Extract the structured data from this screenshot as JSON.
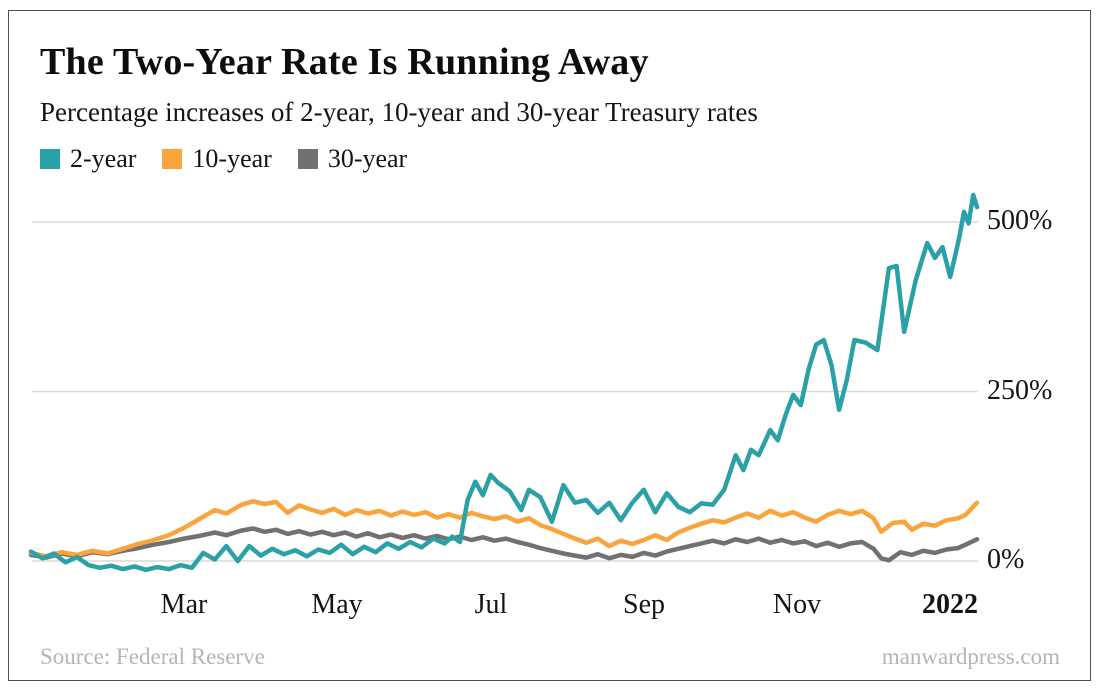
{
  "header": {
    "title": "The Two-Year Rate Is Running Away",
    "subtitle": "Percentage increases of 2-year, 10-year and 30-year Treasury rates"
  },
  "legend": {
    "items": [
      {
        "label": "2-year",
        "color": "#2AA1A7"
      },
      {
        "label": "10-year",
        "color": "#F9A43C"
      },
      {
        "label": "30-year",
        "color": "#717171"
      }
    ]
  },
  "footer": {
    "source": "Source: Federal Reserve",
    "site": "manwardpress.com"
  },
  "chart_data": {
    "type": "line",
    "title": "The Two-Year Rate Is Running Away",
    "subtitle": "Percentage increases of 2-year, 10-year and 30-year Treasury rates",
    "x_unit": "months since Jan 2021",
    "y_unit": "percent increase",
    "ylim": [
      -40,
      560
    ],
    "grid": "horizontal",
    "legend_position": "top-left",
    "grid_color": "#d9d9d9",
    "y_ticks": [
      {
        "value": 0,
        "label": "0%"
      },
      {
        "value": 250,
        "label": "250%"
      },
      {
        "value": 500,
        "label": "500%"
      }
    ],
    "x_ticks": [
      {
        "month": 2,
        "label": "Mar",
        "emphasis": false
      },
      {
        "month": 4,
        "label": "May",
        "emphasis": false
      },
      {
        "month": 6,
        "label": "Jul",
        "emphasis": false
      },
      {
        "month": 8,
        "label": "Sep",
        "emphasis": false
      },
      {
        "month": 10,
        "label": "Nov",
        "emphasis": false
      },
      {
        "month": 12,
        "label": "2022",
        "emphasis": true
      }
    ],
    "series": [
      {
        "name": "2-year",
        "color": "#2AA1A7",
        "points": [
          [
            0,
            14
          ],
          [
            0.15,
            4
          ],
          [
            0.3,
            11
          ],
          [
            0.45,
            -2
          ],
          [
            0.6,
            6
          ],
          [
            0.75,
            -6
          ],
          [
            0.9,
            -10
          ],
          [
            1.05,
            -7
          ],
          [
            1.2,
            -12
          ],
          [
            1.35,
            -8
          ],
          [
            1.5,
            -13
          ],
          [
            1.65,
            -9
          ],
          [
            1.8,
            -12
          ],
          [
            1.95,
            -6
          ],
          [
            2.1,
            -10
          ],
          [
            2.25,
            12
          ],
          [
            2.4,
            2
          ],
          [
            2.55,
            22
          ],
          [
            2.7,
            0
          ],
          [
            2.85,
            22
          ],
          [
            3.0,
            8
          ],
          [
            3.15,
            18
          ],
          [
            3.3,
            10
          ],
          [
            3.45,
            16
          ],
          [
            3.6,
            7
          ],
          [
            3.75,
            17
          ],
          [
            3.9,
            12
          ],
          [
            4.05,
            24
          ],
          [
            4.2,
            10
          ],
          [
            4.35,
            21
          ],
          [
            4.5,
            13
          ],
          [
            4.65,
            26
          ],
          [
            4.8,
            18
          ],
          [
            4.95,
            28
          ],
          [
            5.1,
            20
          ],
          [
            5.25,
            33
          ],
          [
            5.4,
            26
          ],
          [
            5.5,
            36
          ],
          [
            5.6,
            28
          ],
          [
            5.7,
            90
          ],
          [
            5.8,
            117
          ],
          [
            5.9,
            97
          ],
          [
            6.0,
            127
          ],
          [
            6.1,
            115
          ],
          [
            6.25,
            103
          ],
          [
            6.4,
            75
          ],
          [
            6.5,
            105
          ],
          [
            6.65,
            94
          ],
          [
            6.8,
            58
          ],
          [
            6.95,
            112
          ],
          [
            7.1,
            86
          ],
          [
            7.25,
            90
          ],
          [
            7.4,
            71
          ],
          [
            7.55,
            86
          ],
          [
            7.7,
            60
          ],
          [
            7.85,
            86
          ],
          [
            8.0,
            105
          ],
          [
            8.15,
            72
          ],
          [
            8.3,
            100
          ],
          [
            8.45,
            80
          ],
          [
            8.6,
            72
          ],
          [
            8.75,
            85
          ],
          [
            8.9,
            83
          ],
          [
            9.05,
            105
          ],
          [
            9.2,
            156
          ],
          [
            9.3,
            134
          ],
          [
            9.4,
            164
          ],
          [
            9.5,
            156
          ],
          [
            9.65,
            193
          ],
          [
            9.75,
            178
          ],
          [
            9.85,
            215
          ],
          [
            9.95,
            245
          ],
          [
            10.05,
            230
          ],
          [
            10.15,
            282
          ],
          [
            10.25,
            319
          ],
          [
            10.35,
            326
          ],
          [
            10.45,
            289
          ],
          [
            10.55,
            223
          ],
          [
            10.65,
            267
          ],
          [
            10.75,
            326
          ],
          [
            10.9,
            322
          ],
          [
            11.05,
            311
          ],
          [
            11.2,
            432
          ],
          [
            11.3,
            435
          ],
          [
            11.4,
            338
          ],
          [
            11.55,
            414
          ],
          [
            11.7,
            469
          ],
          [
            11.8,
            447
          ],
          [
            11.9,
            463
          ],
          [
            12.0,
            419
          ],
          [
            12.06,
            448
          ],
          [
            12.12,
            478
          ],
          [
            12.18,
            515
          ],
          [
            12.24,
            498
          ],
          [
            12.3,
            540
          ],
          [
            12.35,
            522
          ]
        ]
      },
      {
        "name": "10-year",
        "color": "#F9A43C",
        "points": [
          [
            0,
            12
          ],
          [
            0.2,
            7
          ],
          [
            0.4,
            13
          ],
          [
            0.6,
            9
          ],
          [
            0.8,
            15
          ],
          [
            1.0,
            11
          ],
          [
            1.2,
            18
          ],
          [
            1.4,
            25
          ],
          [
            1.6,
            31
          ],
          [
            1.8,
            38
          ],
          [
            2.0,
            49
          ],
          [
            2.2,
            62
          ],
          [
            2.4,
            75
          ],
          [
            2.55,
            70
          ],
          [
            2.75,
            83
          ],
          [
            2.9,
            88
          ],
          [
            3.05,
            84
          ],
          [
            3.2,
            87
          ],
          [
            3.35,
            71
          ],
          [
            3.5,
            82
          ],
          [
            3.65,
            76
          ],
          [
            3.8,
            71
          ],
          [
            3.95,
            77
          ],
          [
            4.1,
            68
          ],
          [
            4.25,
            75
          ],
          [
            4.4,
            70
          ],
          [
            4.55,
            74
          ],
          [
            4.7,
            67
          ],
          [
            4.85,
            73
          ],
          [
            5.0,
            68
          ],
          [
            5.15,
            72
          ],
          [
            5.3,
            64
          ],
          [
            5.45,
            69
          ],
          [
            5.6,
            64
          ],
          [
            5.75,
            71
          ],
          [
            5.9,
            66
          ],
          [
            6.05,
            62
          ],
          [
            6.2,
            66
          ],
          [
            6.35,
            58
          ],
          [
            6.5,
            63
          ],
          [
            6.65,
            53
          ],
          [
            6.8,
            47
          ],
          [
            6.95,
            40
          ],
          [
            7.1,
            33
          ],
          [
            7.25,
            27
          ],
          [
            7.4,
            33
          ],
          [
            7.55,
            22
          ],
          [
            7.7,
            30
          ],
          [
            7.85,
            25
          ],
          [
            8.0,
            31
          ],
          [
            8.15,
            38
          ],
          [
            8.3,
            31
          ],
          [
            8.45,
            42
          ],
          [
            8.6,
            49
          ],
          [
            8.75,
            55
          ],
          [
            8.9,
            60
          ],
          [
            9.05,
            57
          ],
          [
            9.2,
            64
          ],
          [
            9.35,
            70
          ],
          [
            9.5,
            64
          ],
          [
            9.65,
            74
          ],
          [
            9.8,
            67
          ],
          [
            9.95,
            72
          ],
          [
            10.1,
            64
          ],
          [
            10.25,
            58
          ],
          [
            10.4,
            68
          ],
          [
            10.55,
            74
          ],
          [
            10.7,
            69
          ],
          [
            10.85,
            74
          ],
          [
            11.0,
            63
          ],
          [
            11.1,
            43
          ],
          [
            11.25,
            56
          ],
          [
            11.4,
            58
          ],
          [
            11.5,
            46
          ],
          [
            11.65,
            55
          ],
          [
            11.8,
            52
          ],
          [
            11.95,
            60
          ],
          [
            12.1,
            63
          ],
          [
            12.2,
            68
          ],
          [
            12.35,
            86
          ]
        ]
      },
      {
        "name": "30-year",
        "color": "#717171",
        "points": [
          [
            0,
            9
          ],
          [
            0.2,
            5
          ],
          [
            0.4,
            11
          ],
          [
            0.6,
            7
          ],
          [
            0.8,
            13
          ],
          [
            1.0,
            10
          ],
          [
            1.2,
            15
          ],
          [
            1.4,
            19
          ],
          [
            1.6,
            24
          ],
          [
            1.8,
            28
          ],
          [
            2.0,
            33
          ],
          [
            2.2,
            37
          ],
          [
            2.4,
            42
          ],
          [
            2.55,
            38
          ],
          [
            2.75,
            45
          ],
          [
            2.9,
            48
          ],
          [
            3.05,
            43
          ],
          [
            3.2,
            46
          ],
          [
            3.35,
            40
          ],
          [
            3.5,
            44
          ],
          [
            3.65,
            39
          ],
          [
            3.8,
            43
          ],
          [
            3.95,
            38
          ],
          [
            4.1,
            42
          ],
          [
            4.25,
            36
          ],
          [
            4.4,
            41
          ],
          [
            4.55,
            35
          ],
          [
            4.7,
            39
          ],
          [
            4.85,
            34
          ],
          [
            5.0,
            38
          ],
          [
            5.15,
            33
          ],
          [
            5.3,
            37
          ],
          [
            5.45,
            32
          ],
          [
            5.6,
            36
          ],
          [
            5.75,
            31
          ],
          [
            5.9,
            35
          ],
          [
            6.05,
            30
          ],
          [
            6.2,
            33
          ],
          [
            6.35,
            28
          ],
          [
            6.5,
            24
          ],
          [
            6.65,
            19
          ],
          [
            6.8,
            15
          ],
          [
            6.95,
            11
          ],
          [
            7.1,
            8
          ],
          [
            7.25,
            5
          ],
          [
            7.4,
            10
          ],
          [
            7.55,
            4
          ],
          [
            7.7,
            9
          ],
          [
            7.85,
            6
          ],
          [
            8.0,
            12
          ],
          [
            8.15,
            8
          ],
          [
            8.3,
            14
          ],
          [
            8.45,
            18
          ],
          [
            8.6,
            22
          ],
          [
            8.75,
            26
          ],
          [
            8.9,
            30
          ],
          [
            9.05,
            26
          ],
          [
            9.2,
            32
          ],
          [
            9.35,
            28
          ],
          [
            9.5,
            33
          ],
          [
            9.65,
            27
          ],
          [
            9.8,
            31
          ],
          [
            9.95,
            26
          ],
          [
            10.1,
            29
          ],
          [
            10.25,
            22
          ],
          [
            10.4,
            27
          ],
          [
            10.55,
            21
          ],
          [
            10.7,
            26
          ],
          [
            10.85,
            28
          ],
          [
            11.0,
            18
          ],
          [
            11.1,
            4
          ],
          [
            11.2,
            1
          ],
          [
            11.35,
            13
          ],
          [
            11.5,
            9
          ],
          [
            11.65,
            15
          ],
          [
            11.8,
            12
          ],
          [
            11.95,
            17
          ],
          [
            12.1,
            19
          ],
          [
            12.2,
            24
          ],
          [
            12.35,
            32
          ]
        ]
      }
    ]
  }
}
